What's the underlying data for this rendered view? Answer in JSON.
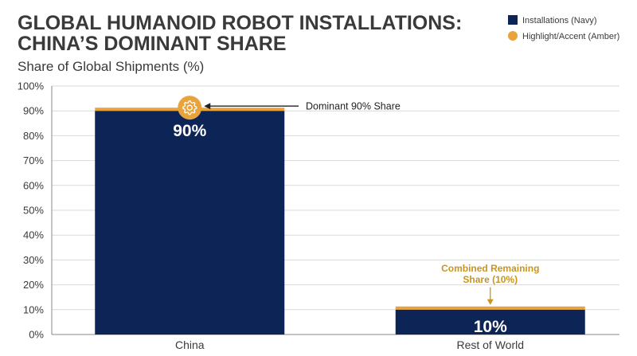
{
  "chart_data": {
    "type": "bar",
    "title_lines": [
      "GLOBAL HUMANOID ROBOT INSTALLATIONS:",
      "CHINA’S DOMINANT SHARE"
    ],
    "ylabel": "Share of Global Shipments (%)",
    "xlabel": "",
    "categories": [
      "China",
      "Rest of World"
    ],
    "values": [
      90,
      10
    ],
    "value_labels": [
      "90%",
      "10%"
    ],
    "ylim": [
      0,
      100
    ],
    "yticks": [
      "0%",
      "10%",
      "20%",
      "30%",
      "40%",
      "50%",
      "60%",
      "70%",
      "80%",
      "90%",
      "100%"
    ],
    "grid": true,
    "legend_position": "top-right",
    "legend": [
      {
        "label": "Installations (Navy)",
        "color": "#0d2457",
        "shape": "square"
      },
      {
        "label": "Highlight/Accent (Amber)",
        "color": "#e8a33d",
        "shape": "circle"
      }
    ],
    "annotations": {
      "china": "Dominant 90% Share",
      "rest_lines": [
        "Combined Remaining",
        "Share (10%)"
      ]
    },
    "colors": {
      "bar": "#0d2457",
      "accent": "#e8a33d",
      "accent_text": "#c8961e",
      "grid": "#d9d9d9",
      "axis": "#888888"
    },
    "icons": {
      "china_marker": "gear-icon"
    }
  }
}
